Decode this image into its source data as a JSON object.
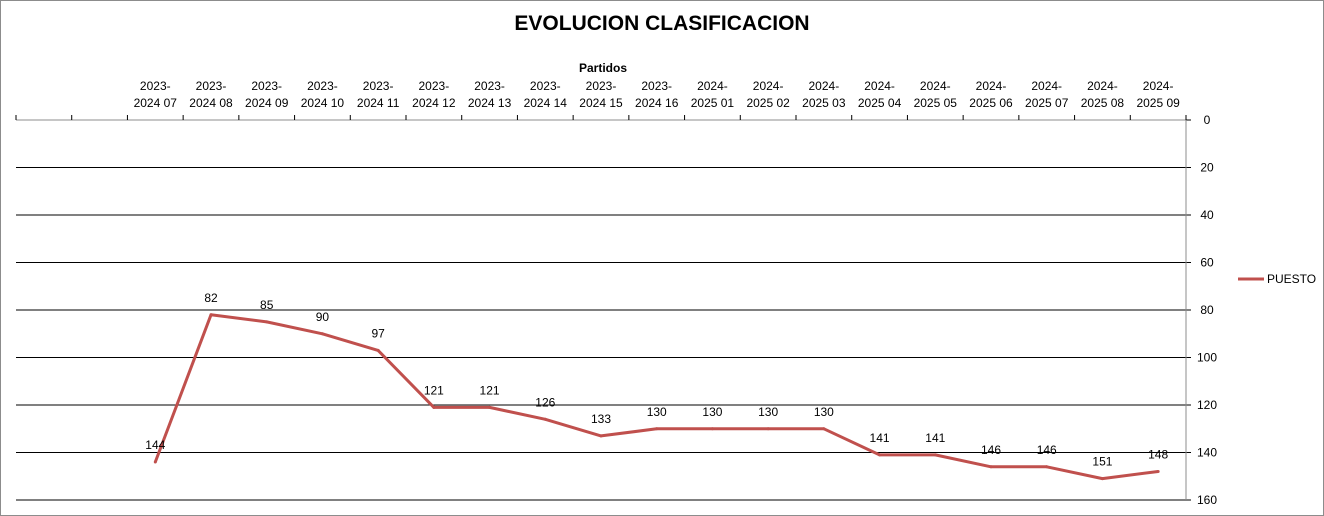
{
  "chart_data": {
    "type": "line",
    "title": "EVOLUCION CLASIFICACION",
    "xlabel": "Partidos",
    "ylabel": "",
    "y_inverted": true,
    "ylim": [
      0,
      160
    ],
    "y_ticks": [
      0,
      20,
      40,
      60,
      80,
      100,
      120,
      140,
      160
    ],
    "x_axis_position": "top",
    "y_axis_position": "right",
    "grid": "horizontal",
    "legend_position": "right",
    "categories": [
      {
        "line1": "",
        "line2": ""
      },
      {
        "line1": "",
        "line2": ""
      },
      {
        "line1": "2023-",
        "line2": "2024 07"
      },
      {
        "line1": "2023-",
        "line2": "2024 08"
      },
      {
        "line1": "2023-",
        "line2": "2024 09"
      },
      {
        "line1": "2023-",
        "line2": "2024 10"
      },
      {
        "line1": "2023-",
        "line2": "2024 11"
      },
      {
        "line1": "2023-",
        "line2": "2024 12"
      },
      {
        "line1": "2023-",
        "line2": "2024 13"
      },
      {
        "line1": "2023-",
        "line2": "2024 14"
      },
      {
        "line1": "2023-",
        "line2": "2024 15"
      },
      {
        "line1": "2023-",
        "line2": "2024 16"
      },
      {
        "line1": "2024-",
        "line2": "2025 01"
      },
      {
        "line1": "2024-",
        "line2": "2025 02"
      },
      {
        "line1": "2024-",
        "line2": "2025 03"
      },
      {
        "line1": "2024-",
        "line2": "2025 04"
      },
      {
        "line1": "2024-",
        "line2": "2025 05"
      },
      {
        "line1": "2024-",
        "line2": "2025 06"
      },
      {
        "line1": "2024-",
        "line2": "2025 07"
      },
      {
        "line1": "2024-",
        "line2": "2025 08"
      },
      {
        "line1": "2024-",
        "line2": "2025 09"
      }
    ],
    "series": [
      {
        "name": "PUESTO",
        "color": "#c0504d",
        "values": [
          null,
          null,
          144,
          82,
          85,
          90,
          97,
          121,
          121,
          126,
          133,
          130,
          130,
          130,
          130,
          141,
          141,
          146,
          146,
          151,
          148
        ]
      }
    ]
  }
}
